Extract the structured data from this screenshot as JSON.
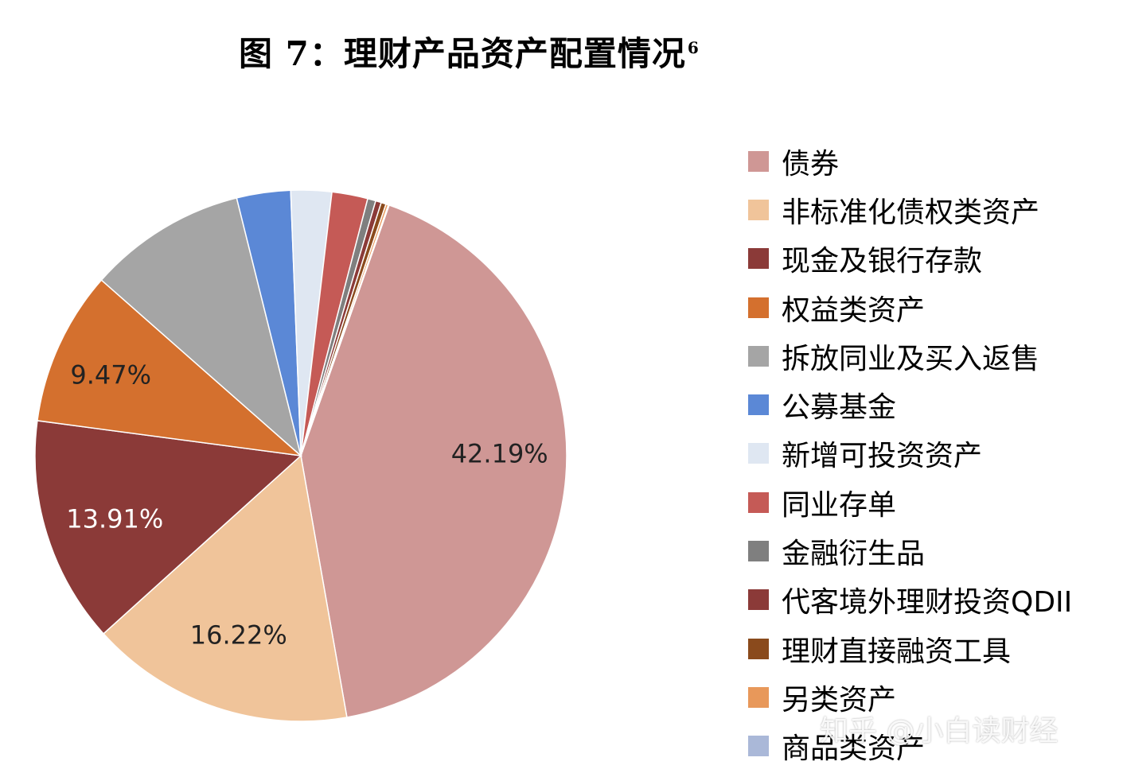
{
  "title": "图 7：理财产品资产配置情况",
  "title_footnote": "6",
  "watermark": "知乎 @小白读财经",
  "chart_data": {
    "type": "pie",
    "start_angle_deg": -70.6,
    "slices": [
      {
        "name": "债券",
        "value": 42.19,
        "label": "42.19%",
        "color": "#cf9795"
      },
      {
        "name": "非标准化债权类资产",
        "value": 16.22,
        "label": "16.22%",
        "color": "#f0c49a"
      },
      {
        "name": "现金及银行存款",
        "value": 13.91,
        "label": "13.91%",
        "color": "#8b3a38"
      },
      {
        "name": "权益类资产",
        "value": 9.47,
        "label": "9.47%",
        "color": "#d4702e"
      },
      {
        "name": "拆放同业及买入返售",
        "value": 9.7,
        "label": "",
        "color": "#a5a5a5"
      },
      {
        "name": "公募基金",
        "value": 3.3,
        "label": "",
        "color": "#5b88d6"
      },
      {
        "name": "新增可投资资产",
        "value": 2.5,
        "label": "",
        "color": "#dfe7f2"
      },
      {
        "name": "同业存单",
        "value": 2.2,
        "label": "",
        "color": "#c55a56"
      },
      {
        "name": "金融衍生品",
        "value": 0.5,
        "label": "",
        "color": "#7f7f7f"
      },
      {
        "name": "代客境外理财投资QDII",
        "value": 0.35,
        "label": "",
        "color": "#8b3a38"
      },
      {
        "name": "理财直接融资工具",
        "value": 0.3,
        "label": "",
        "color": "#8a4a1c"
      },
      {
        "name": "另类资产",
        "value": 0.15,
        "label": "",
        "color": "#e8985a"
      },
      {
        "name": "商品类资产",
        "value": 0.05,
        "label": "",
        "color": "#aab8d8"
      }
    ],
    "legend_position": "right"
  }
}
